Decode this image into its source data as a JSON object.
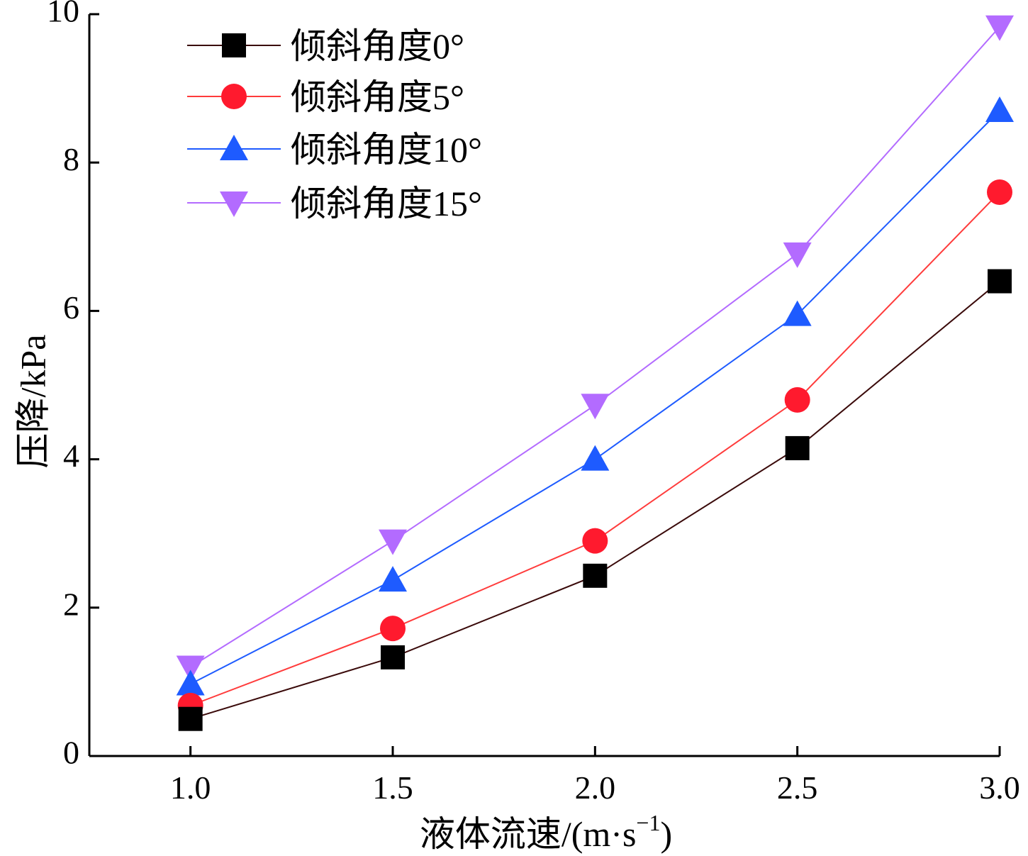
{
  "chart_data": {
    "type": "line",
    "title": "",
    "xlabel": "液体流速/(m·s",
    "xlabel_sup": "−1",
    "xlabel_tail": ")",
    "ylabel": "压降/kPa",
    "x": [
      1.0,
      1.5,
      2.0,
      2.5,
      3.0
    ],
    "x_tick_labels": [
      "1.0",
      "1.5",
      "2.0",
      "2.5",
      "3.0"
    ],
    "y_ticks": [
      0,
      2,
      4,
      6,
      8,
      10
    ],
    "y_tick_labels": [
      "0",
      "2",
      "4",
      "6",
      "8",
      "10"
    ],
    "xlim": [
      0.75,
      3.0
    ],
    "ylim": [
      0,
      10
    ],
    "grid": false,
    "legend_position": "top-left",
    "series": [
      {
        "name": "倾斜角度0°",
        "marker": "square",
        "color": "#000000",
        "line_color": "#3a0a0a",
        "values": [
          0.5,
          1.33,
          2.43,
          4.15,
          6.4
        ]
      },
      {
        "name": "倾斜角度5°",
        "marker": "circle",
        "color": "#ff1a2e",
        "line_color": "#ff3b3b",
        "values": [
          0.68,
          1.72,
          2.9,
          4.8,
          7.6
        ]
      },
      {
        "name": "倾斜角度10°",
        "marker": "triangle-up",
        "color": "#1e5bff",
        "line_color": "#1e5bff",
        "values": [
          0.97,
          2.37,
          4.0,
          5.95,
          8.7
        ]
      },
      {
        "name": "倾斜角度15°",
        "marker": "triangle-down",
        "color": "#b36bff",
        "line_color": "#b36bff",
        "values": [
          1.2,
          2.9,
          4.73,
          6.77,
          9.83
        ]
      }
    ]
  }
}
